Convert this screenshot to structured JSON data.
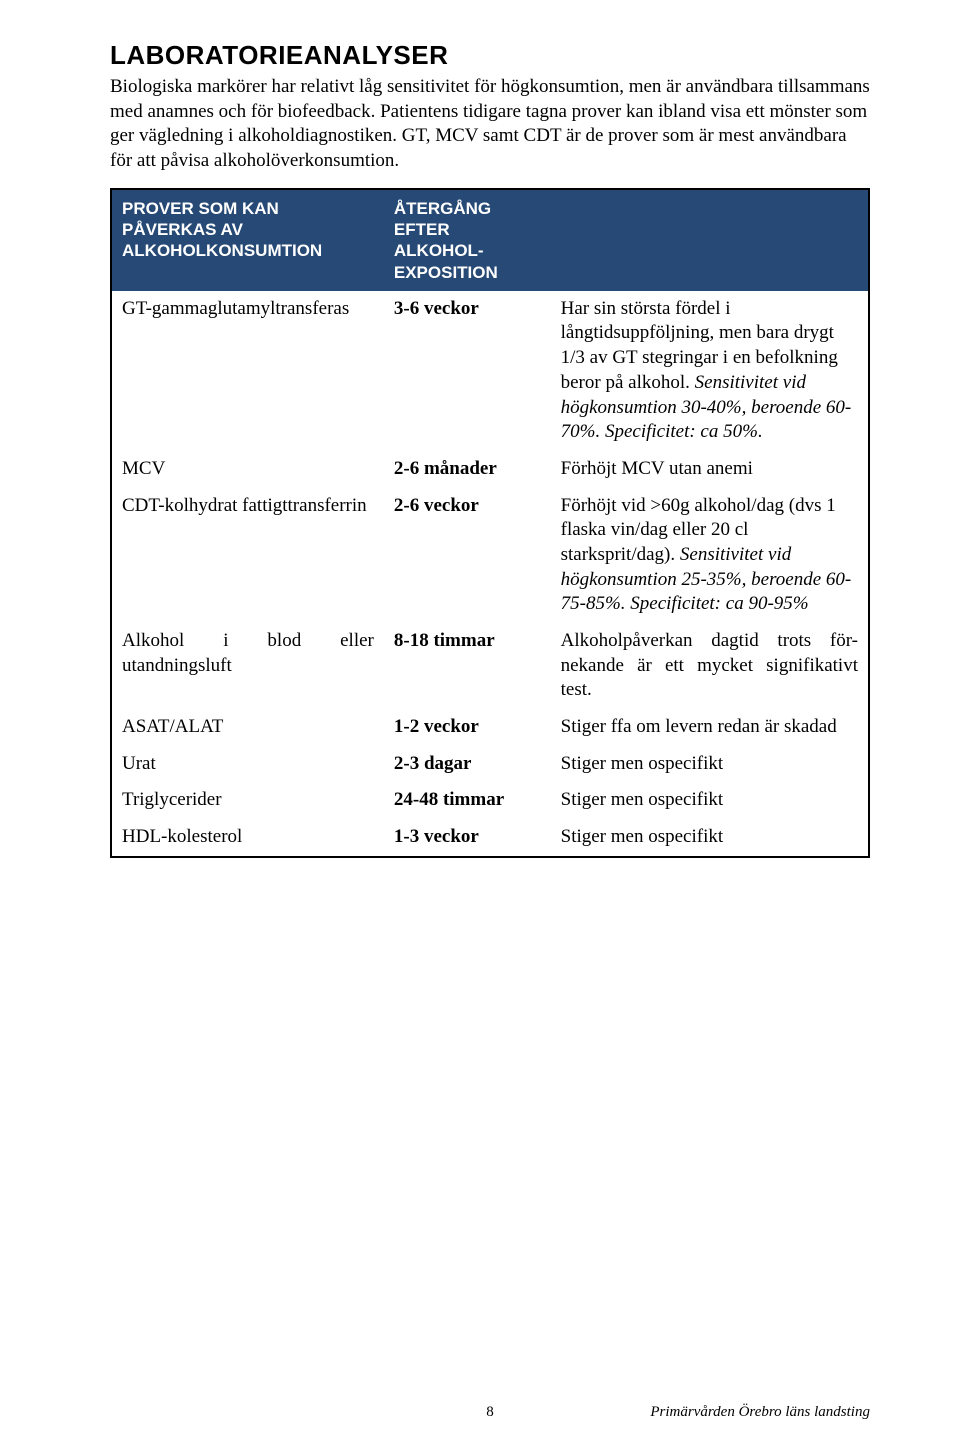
{
  "title": "LABORATORIEANALYSER",
  "intro": "Biologiska markörer har relativt låg sensitivitet för högkonsumtion, men är användbara tillsammans med anamnes och för biofeedback. Patientens tidigare tagna prover kan ibland visa ett mönster som ger vägledning i alkoholdiagnostiken. GT, MCV samt CDT är de prover som är mest användbara för att påvisa alkoholöverkonsumtion.",
  "table": {
    "header": {
      "col1": "PROVER SOM KAN PÅVERKAS AV ALKOHOLKONSUMTION",
      "col2": "ÅTERGÅNG EFTER ALKOHOL-EXPOSITION",
      "col3": ""
    },
    "rows": [
      {
        "c1": "GT-gammaglutamyltransferas",
        "c2": "3-6 veckor",
        "c3_plain": "Har sin största fördel i långtidsuppföljning, men  bara drygt 1/3 av GT stegringar i en befolkning beror på alkohol. ",
        "c3_italic": "Sensitivitet vid högkonsumtion 30-40%, beroende 60-70%. Specificitet: ca 50%."
      },
      {
        "c1": "MCV",
        "c2": "2-6 månader",
        "c3_plain": "Förhöjt MCV utan anemi",
        "c3_italic": ""
      },
      {
        "c1": "CDT-kolhydrat fattigttransferrin",
        "c2": "2-6 veckor",
        "c3_plain": "Förhöjt vid >60g alkohol/dag (dvs 1 flaska vin/dag eller 20 cl starksprit/dag). ",
        "c3_italic": "Sensitivitet vid högkonsumtion 25-35%, beroende 60-75-85%. Specificitet: ca 90-95%"
      },
      {
        "c1": "Alkohol i blod eller utandningsluft",
        "c2": "8-18 timmar",
        "c3_plain": "Alkoholpåverkan dagtid trots för-nekande är ett mycket signifikativt test.",
        "c3_italic": ""
      },
      {
        "c1": "ASAT/ALAT",
        "c2": "1-2 veckor",
        "c3_plain": "Stiger ffa om levern redan är skadad",
        "c3_italic": ""
      },
      {
        "c1": "Urat",
        "c2": "2-3 dagar",
        "c3_plain": "Stiger men ospecifikt",
        "c3_italic": ""
      },
      {
        "c1": "Triglycerider",
        "c2": "24-48 timmar",
        "c3_plain": "Stiger men ospecifikt",
        "c3_italic": ""
      },
      {
        "c1": "HDL-kolesterol",
        "c2": "1-3 veckor",
        "c3_plain": "Stiger men ospecifikt",
        "c3_italic": ""
      }
    ]
  },
  "footer": {
    "page": "8",
    "org": "Primärvården Örebro läns landsting"
  },
  "colors": {
    "header_bg": "#264975",
    "header_text": "#ffffff",
    "page_bg": "#ffffff",
    "text": "#000000",
    "border": "#000000"
  }
}
